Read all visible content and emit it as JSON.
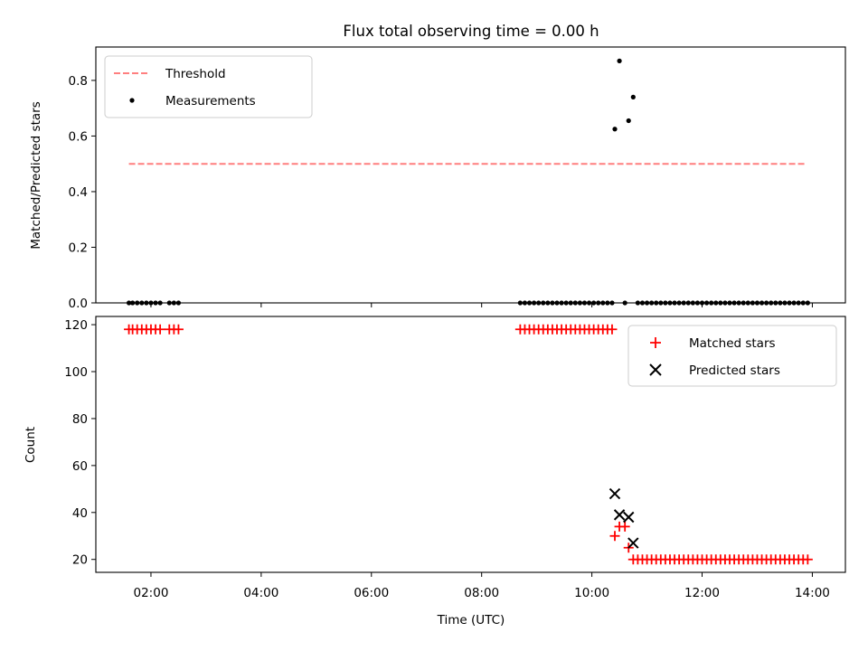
{
  "chart_data": [
    {
      "type": "scatter",
      "title": "Flux total observing time = 0.00 h",
      "xlabel": "",
      "ylabel": "Matched/Predicted stars",
      "xlim": [
        "01:00",
        "14:36"
      ],
      "ylim": [
        0,
        0.92
      ],
      "yticks": [
        {
          "v": 0.0,
          "label": "0.0"
        },
        {
          "v": 0.2,
          "label": "0.2"
        },
        {
          "v": 0.4,
          "label": "0.4"
        },
        {
          "v": 0.6,
          "label": "0.6"
        },
        {
          "v": 0.8,
          "label": "0.8"
        }
      ],
      "grid": false,
      "legend_position": "upper-left",
      "legend": [
        {
          "label": "Threshold",
          "marker": "dashed-line",
          "color": "#ff7f7f"
        },
        {
          "label": "Measurements",
          "marker": "dot",
          "color": "#000000"
        }
      ],
      "threshold": {
        "name": "Threshold",
        "value": 0.5,
        "x_start": "01:36",
        "x_end": "13:54",
        "color": "#ff7f7f"
      },
      "measurements": {
        "name": "Measurements",
        "color": "#000000",
        "points": [
          [
            "01:36",
            0
          ],
          [
            "01:40",
            0
          ],
          [
            "01:45",
            0
          ],
          [
            "01:50",
            0
          ],
          [
            "01:55",
            0
          ],
          [
            "02:00",
            0
          ],
          [
            "02:05",
            0
          ],
          [
            "02:10",
            0
          ],
          [
            "02:20",
            0
          ],
          [
            "02:25",
            0
          ],
          [
            "02:30",
            0
          ],
          [
            "08:42",
            0
          ],
          [
            "08:47",
            0
          ],
          [
            "08:52",
            0
          ],
          [
            "08:57",
            0
          ],
          [
            "09:02",
            0
          ],
          [
            "09:07",
            0
          ],
          [
            "09:12",
            0
          ],
          [
            "09:17",
            0
          ],
          [
            "09:22",
            0
          ],
          [
            "09:27",
            0
          ],
          [
            "09:32",
            0
          ],
          [
            "09:37",
            0
          ],
          [
            "09:42",
            0
          ],
          [
            "09:47",
            0
          ],
          [
            "09:52",
            0
          ],
          [
            "09:57",
            0
          ],
          [
            "10:02",
            0
          ],
          [
            "10:07",
            0
          ],
          [
            "10:12",
            0
          ],
          [
            "10:17",
            0
          ],
          [
            "10:22",
            0
          ],
          [
            "10:25",
            0.625
          ],
          [
            "10:30",
            0.87
          ],
          [
            "10:40",
            0.655
          ],
          [
            "10:45",
            0.74
          ],
          [
            "10:36",
            0
          ],
          [
            "10:50",
            0
          ],
          [
            "10:55",
            0
          ],
          [
            "11:00",
            0
          ],
          [
            "11:05",
            0
          ],
          [
            "11:10",
            0
          ],
          [
            "11:15",
            0
          ],
          [
            "11:20",
            0
          ],
          [
            "11:25",
            0
          ],
          [
            "11:30",
            0
          ],
          [
            "11:35",
            0
          ],
          [
            "11:40",
            0
          ],
          [
            "11:45",
            0
          ],
          [
            "11:50",
            0
          ],
          [
            "11:55",
            0
          ],
          [
            "12:00",
            0
          ],
          [
            "12:05",
            0
          ],
          [
            "12:10",
            0
          ],
          [
            "12:15",
            0
          ],
          [
            "12:20",
            0
          ],
          [
            "12:25",
            0
          ],
          [
            "12:30",
            0
          ],
          [
            "12:35",
            0
          ],
          [
            "12:40",
            0
          ],
          [
            "12:45",
            0
          ],
          [
            "12:50",
            0
          ],
          [
            "12:55",
            0
          ],
          [
            "13:00",
            0
          ],
          [
            "13:05",
            0
          ],
          [
            "13:10",
            0
          ],
          [
            "13:15",
            0
          ],
          [
            "13:20",
            0
          ],
          [
            "13:25",
            0
          ],
          [
            "13:30",
            0
          ],
          [
            "13:35",
            0
          ],
          [
            "13:40",
            0
          ],
          [
            "13:45",
            0
          ],
          [
            "13:50",
            0
          ],
          [
            "13:55",
            0
          ]
        ]
      }
    },
    {
      "type": "scatter",
      "title": "",
      "xlabel": "Time (UTC)",
      "ylabel": "Count",
      "xlim": [
        "01:00",
        "14:36"
      ],
      "ylim": [
        14.5,
        123.5
      ],
      "xticks": [
        "02:00",
        "04:00",
        "06:00",
        "08:00",
        "10:00",
        "12:00",
        "14:00"
      ],
      "yticks": [
        {
          "v": 20,
          "label": "20"
        },
        {
          "v": 40,
          "label": "40"
        },
        {
          "v": 60,
          "label": "60"
        },
        {
          "v": 80,
          "label": "80"
        },
        {
          "v": 100,
          "label": "100"
        },
        {
          "v": 120,
          "label": "120"
        }
      ],
      "grid": false,
      "legend_position": "upper-right",
      "legend": [
        {
          "label": "Matched stars",
          "marker": "plus",
          "color": "#ff0000"
        },
        {
          "label": "Predicted stars",
          "marker": "x",
          "color": "#000000"
        }
      ],
      "series": [
        {
          "name": "Matched stars",
          "marker": "plus",
          "color": "#ff0000",
          "points": [
            [
              "01:36",
              118
            ],
            [
              "01:40",
              118
            ],
            [
              "01:45",
              118
            ],
            [
              "01:50",
              118
            ],
            [
              "01:55",
              118
            ],
            [
              "02:00",
              118
            ],
            [
              "02:05",
              118
            ],
            [
              "02:10",
              118
            ],
            [
              "02:20",
              118
            ],
            [
              "02:25",
              118
            ],
            [
              "02:30",
              118
            ],
            [
              "08:42",
              118
            ],
            [
              "08:47",
              118
            ],
            [
              "08:52",
              118
            ],
            [
              "08:57",
              118
            ],
            [
              "09:02",
              118
            ],
            [
              "09:07",
              118
            ],
            [
              "09:12",
              118
            ],
            [
              "09:17",
              118
            ],
            [
              "09:22",
              118
            ],
            [
              "09:27",
              118
            ],
            [
              "09:32",
              118
            ],
            [
              "09:37",
              118
            ],
            [
              "09:42",
              118
            ],
            [
              "09:47",
              118
            ],
            [
              "09:52",
              118
            ],
            [
              "09:57",
              118
            ],
            [
              "10:02",
              118
            ],
            [
              "10:07",
              118
            ],
            [
              "10:12",
              118
            ],
            [
              "10:17",
              118
            ],
            [
              "10:22",
              118
            ],
            [
              "10:25",
              30
            ],
            [
              "10:30",
              34
            ],
            [
              "10:36",
              34
            ],
            [
              "10:40",
              25
            ],
            [
              "10:45",
              20
            ],
            [
              "10:50",
              20
            ],
            [
              "10:55",
              20
            ],
            [
              "11:00",
              20
            ],
            [
              "11:05",
              20
            ],
            [
              "11:10",
              20
            ],
            [
              "11:15",
              20
            ],
            [
              "11:20",
              20
            ],
            [
              "11:25",
              20
            ],
            [
              "11:30",
              20
            ],
            [
              "11:35",
              20
            ],
            [
              "11:40",
              20
            ],
            [
              "11:45",
              20
            ],
            [
              "11:50",
              20
            ],
            [
              "11:55",
              20
            ],
            [
              "12:00",
              20
            ],
            [
              "12:05",
              20
            ],
            [
              "12:10",
              20
            ],
            [
              "12:15",
              20
            ],
            [
              "12:20",
              20
            ],
            [
              "12:25",
              20
            ],
            [
              "12:30",
              20
            ],
            [
              "12:35",
              20
            ],
            [
              "12:40",
              20
            ],
            [
              "12:45",
              20
            ],
            [
              "12:50",
              20
            ],
            [
              "12:55",
              20
            ],
            [
              "13:00",
              20
            ],
            [
              "13:05",
              20
            ],
            [
              "13:10",
              20
            ],
            [
              "13:15",
              20
            ],
            [
              "13:20",
              20
            ],
            [
              "13:25",
              20
            ],
            [
              "13:30",
              20
            ],
            [
              "13:35",
              20
            ],
            [
              "13:40",
              20
            ],
            [
              "13:45",
              20
            ],
            [
              "13:50",
              20
            ],
            [
              "13:55",
              20
            ]
          ]
        },
        {
          "name": "Predicted stars",
          "marker": "x",
          "color": "#000000",
          "points": [
            [
              "10:25",
              48
            ],
            [
              "10:30",
              39
            ],
            [
              "10:40",
              38
            ],
            [
              "10:45",
              27
            ]
          ]
        }
      ]
    }
  ]
}
